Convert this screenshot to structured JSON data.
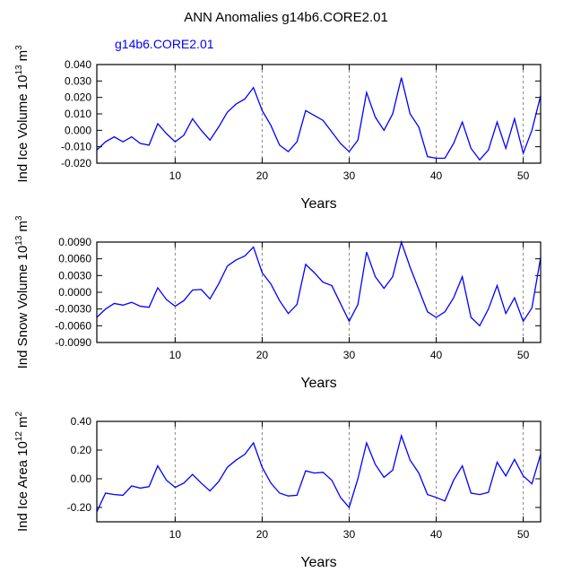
{
  "chart_data": [
    {
      "type": "line",
      "title": "ANN Anomalies g14b6.CORE2.01",
      "subtitle": "g14b6.CORE2.01",
      "subtitle_color": "#0000ff",
      "xlabel": "Years",
      "ylabel": {
        "text": "Ind Ice Volume 10",
        "exponent": "13",
        "unit": "m",
        "unit_exponent": "3"
      },
      "x": [
        1,
        2,
        3,
        4,
        5,
        6,
        7,
        8,
        9,
        10,
        11,
        12,
        13,
        14,
        15,
        16,
        17,
        18,
        19,
        20,
        21,
        22,
        23,
        24,
        25,
        26,
        27,
        28,
        29,
        30,
        31,
        32,
        33,
        34,
        35,
        36,
        37,
        38,
        39,
        40,
        41,
        42,
        43,
        44,
        45,
        46,
        47,
        48,
        49,
        50,
        51,
        52
      ],
      "values": [
        -0.012,
        -0.007,
        -0.004,
        -0.007,
        -0.004,
        -0.008,
        -0.009,
        0.004,
        -0.002,
        -0.007,
        -0.003,
        0.007,
        0.0,
        -0.006,
        0.002,
        0.011,
        0.016,
        0.019,
        0.026,
        0.012,
        0.003,
        -0.009,
        -0.013,
        -0.007,
        0.012,
        0.009,
        0.006,
        -0.001,
        -0.008,
        -0.013,
        -0.006,
        0.023,
        0.008,
        0.0,
        0.01,
        0.032,
        0.01,
        0.002,
        -0.016,
        -0.017,
        -0.017,
        -0.008,
        0.005,
        -0.011,
        -0.018,
        -0.012,
        0.005,
        -0.011,
        0.007,
        -0.014,
        0.0,
        0.021
      ],
      "color": "#0000ff",
      "xlim": [
        1,
        52
      ],
      "xticks": [
        10,
        20,
        30,
        40,
        50
      ],
      "grid": true,
      "ylim": [
        -0.02,
        0.04
      ],
      "yticks": [
        {
          "value": 0.04,
          "label": "0.040"
        },
        {
          "value": 0.03,
          "label": "0.030"
        },
        {
          "value": 0.02,
          "label": "0.020"
        },
        {
          "value": 0.01,
          "label": "0.010"
        },
        {
          "value": 0,
          "label": "0.000"
        },
        {
          "value": -0.01,
          "label": "-0.010"
        },
        {
          "value": -0.02,
          "label": "-0.020"
        }
      ]
    },
    {
      "type": "line",
      "xlabel": "Years",
      "ylabel": {
        "text": "Ind Snow Volume 10",
        "exponent": "13",
        "unit": "m",
        "unit_exponent": "3"
      },
      "x": [
        1,
        2,
        3,
        4,
        5,
        6,
        7,
        8,
        9,
        10,
        11,
        12,
        13,
        14,
        15,
        16,
        17,
        18,
        19,
        20,
        21,
        22,
        23,
        24,
        25,
        26,
        27,
        28,
        29,
        30,
        31,
        32,
        33,
        34,
        35,
        36,
        37,
        38,
        39,
        40,
        41,
        42,
        43,
        44,
        45,
        46,
        47,
        48,
        49,
        50,
        51,
        52
      ],
      "values": [
        -0.0045,
        -0.003,
        -0.002,
        -0.0023,
        -0.0018,
        -0.0025,
        -0.0027,
        0.0008,
        -0.0013,
        -0.0025,
        -0.0015,
        0.0004,
        0.0005,
        -0.0012,
        0.0015,
        0.0047,
        0.0058,
        0.0065,
        0.0081,
        0.0035,
        0.0015,
        -0.0015,
        -0.0038,
        -0.0022,
        0.005,
        0.0035,
        0.0018,
        0.0012,
        -0.002,
        -0.0052,
        -0.0022,
        0.0072,
        0.0028,
        0.0007,
        0.0028,
        0.009,
        0.0045,
        0.0005,
        -0.0035,
        -0.0045,
        -0.0035,
        -0.001,
        0.0028,
        -0.0045,
        -0.006,
        -0.003,
        0.0012,
        -0.0038,
        -0.001,
        -0.0052,
        -0.0028,
        0.0062
      ],
      "color": "#0000ff",
      "xlim": [
        1,
        52
      ],
      "xticks": [
        10,
        20,
        30,
        40,
        50
      ],
      "grid": true,
      "ylim": [
        -0.009,
        0.009
      ],
      "yticks": [
        {
          "value": 0.009,
          "label": "0.0090"
        },
        {
          "value": 0.006,
          "label": "0.0060"
        },
        {
          "value": 0.003,
          "label": "0.0030"
        },
        {
          "value": 0,
          "label": "0.0000"
        },
        {
          "value": -0.003,
          "label": "-0.0030"
        },
        {
          "value": -0.006,
          "label": "-0.0060"
        },
        {
          "value": -0.009,
          "label": "-0.0090"
        }
      ]
    },
    {
      "type": "line",
      "xlabel": "Years",
      "ylabel": {
        "text": "Ind Ice Area 10",
        "exponent": "12",
        "unit": "m",
        "unit_exponent": "2"
      },
      "x": [
        1,
        2,
        3,
        4,
        5,
        6,
        7,
        8,
        9,
        10,
        11,
        12,
        13,
        14,
        15,
        16,
        17,
        18,
        19,
        20,
        21,
        22,
        23,
        24,
        25,
        26,
        27,
        28,
        29,
        30,
        31,
        32,
        33,
        34,
        35,
        36,
        37,
        38,
        39,
        40,
        41,
        42,
        43,
        44,
        45,
        46,
        47,
        48,
        49,
        50,
        51,
        52
      ],
      "values": [
        -0.23,
        -0.1,
        -0.11,
        -0.115,
        -0.05,
        -0.065,
        -0.055,
        0.09,
        -0.01,
        -0.06,
        -0.03,
        0.03,
        -0.03,
        -0.085,
        -0.02,
        0.08,
        0.13,
        0.17,
        0.25,
        0.08,
        -0.03,
        -0.1,
        -0.12,
        -0.115,
        0.055,
        0.04,
        0.045,
        -0.01,
        -0.13,
        -0.2,
        0.0,
        0.25,
        0.1,
        0.01,
        0.06,
        0.3,
        0.13,
        0.04,
        -0.11,
        -0.13,
        -0.155,
        -0.01,
        0.09,
        -0.1,
        -0.11,
        -0.095,
        0.115,
        0.02,
        0.135,
        0.02,
        -0.035,
        0.17
      ],
      "color": "#0000ff",
      "xlim": [
        1,
        52
      ],
      "xticks": [
        10,
        20,
        30,
        40,
        50
      ],
      "grid": true,
      "ylim": [
        -0.3,
        0.4
      ],
      "yticks": [
        {
          "value": 0.4,
          "label": "0.40"
        },
        {
          "value": 0.2,
          "label": "0.20"
        },
        {
          "value": 0,
          "label": "0.00"
        },
        {
          "value": -0.2,
          "label": "-0.20"
        }
      ]
    }
  ]
}
